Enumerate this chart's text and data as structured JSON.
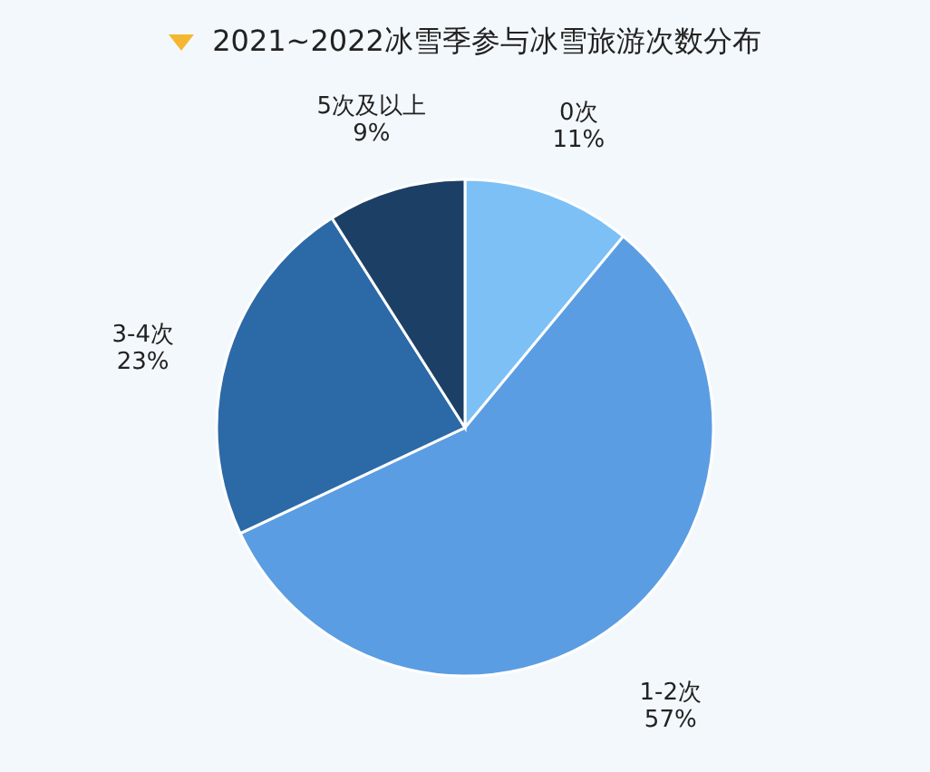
{
  "chart_data": {
    "type": "pie",
    "title": "2021~2022冰雪季参与冰雪旅游次数分布",
    "categories": [
      "0次",
      "1-2次",
      "3-4次",
      "5次及以上"
    ],
    "values": [
      11,
      57,
      23,
      9
    ],
    "colors": [
      "#7cc0f6",
      "#5b9de2",
      "#2c69a7",
      "#1c3f66"
    ],
    "value_labels": [
      "11%",
      "57%",
      "23%",
      "9%"
    ]
  }
}
